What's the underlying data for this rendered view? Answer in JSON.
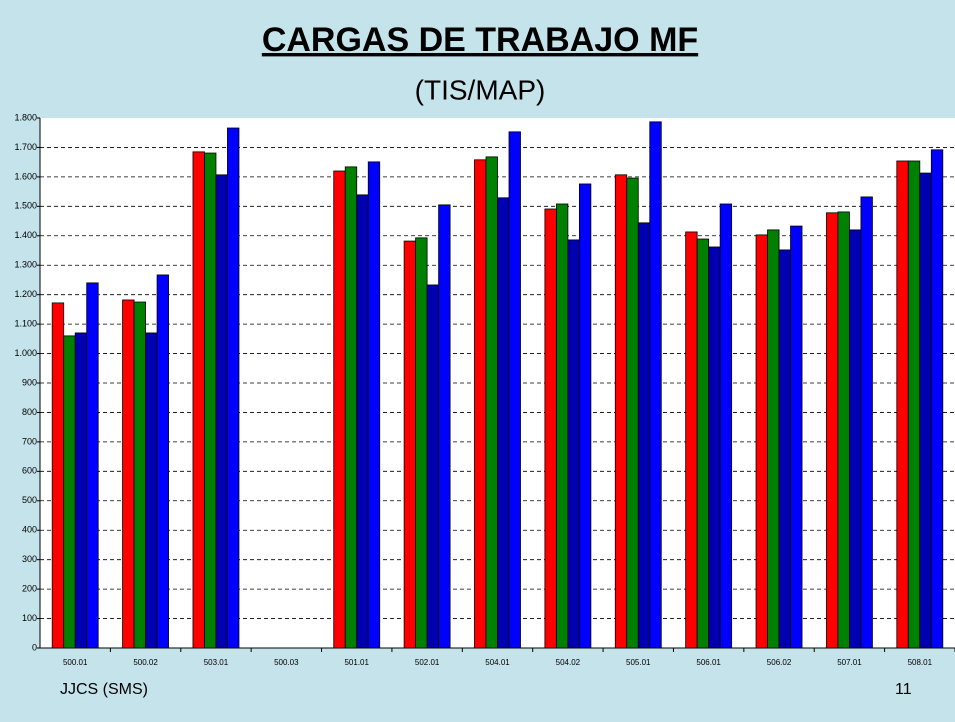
{
  "chart_data": {
    "type": "bar",
    "title": "CARGAS DE TRABAJO MF",
    "subtitle": "(TIS/MAP)",
    "footer_left": "JJCS (SMS)",
    "page_number": "11",
    "categories": [
      "500.01",
      "500.02",
      "503.01",
      "500.03",
      "501.01",
      "502.01",
      "504.01",
      "504.02",
      "505.01",
      "506.01",
      "506.02",
      "507.01",
      "508.01"
    ],
    "series": [
      {
        "color": "#ff0000",
        "values": [
          1172,
          1182,
          1685,
          null,
          1620,
          1382,
          1658,
          1491,
          1607,
          1413,
          1403,
          1478,
          1654
        ]
      },
      {
        "color": "#008000",
        "values": [
          1060,
          1175,
          1681,
          null,
          1634,
          1393,
          1668,
          1508,
          1596,
          1389,
          1420,
          1481,
          1654
        ]
      },
      {
        "color": "#0000b0",
        "values": [
          1070,
          1070,
          1607,
          null,
          1539,
          1233,
          1529,
          1386,
          1444,
          1362,
          1352,
          1420,
          1613
        ]
      },
      {
        "color": "#0000ff",
        "values": [
          1240,
          1267,
          1766,
          null,
          1651,
          1505,
          1753,
          1576,
          1787,
          1508,
          1433,
          1532,
          1692
        ]
      }
    ],
    "ylim": [
      0,
      1800
    ],
    "yticks": [
      0,
      100,
      200,
      300,
      400,
      500,
      600,
      700,
      800,
      900,
      {
        "value": 1000,
        "label": "1.000"
      },
      {
        "value": 1100,
        "label": "1.100"
      },
      {
        "value": 1200,
        "label": "1.200"
      },
      {
        "value": 1300,
        "label": "1.300"
      },
      {
        "value": 1400,
        "label": "1.400"
      },
      {
        "value": 1500,
        "label": "1.500"
      },
      {
        "value": 1600,
        "label": "1.600"
      },
      {
        "value": 1700,
        "label": "1.700"
      },
      {
        "value": 1800,
        "label": "1.800"
      }
    ],
    "grid": true
  }
}
